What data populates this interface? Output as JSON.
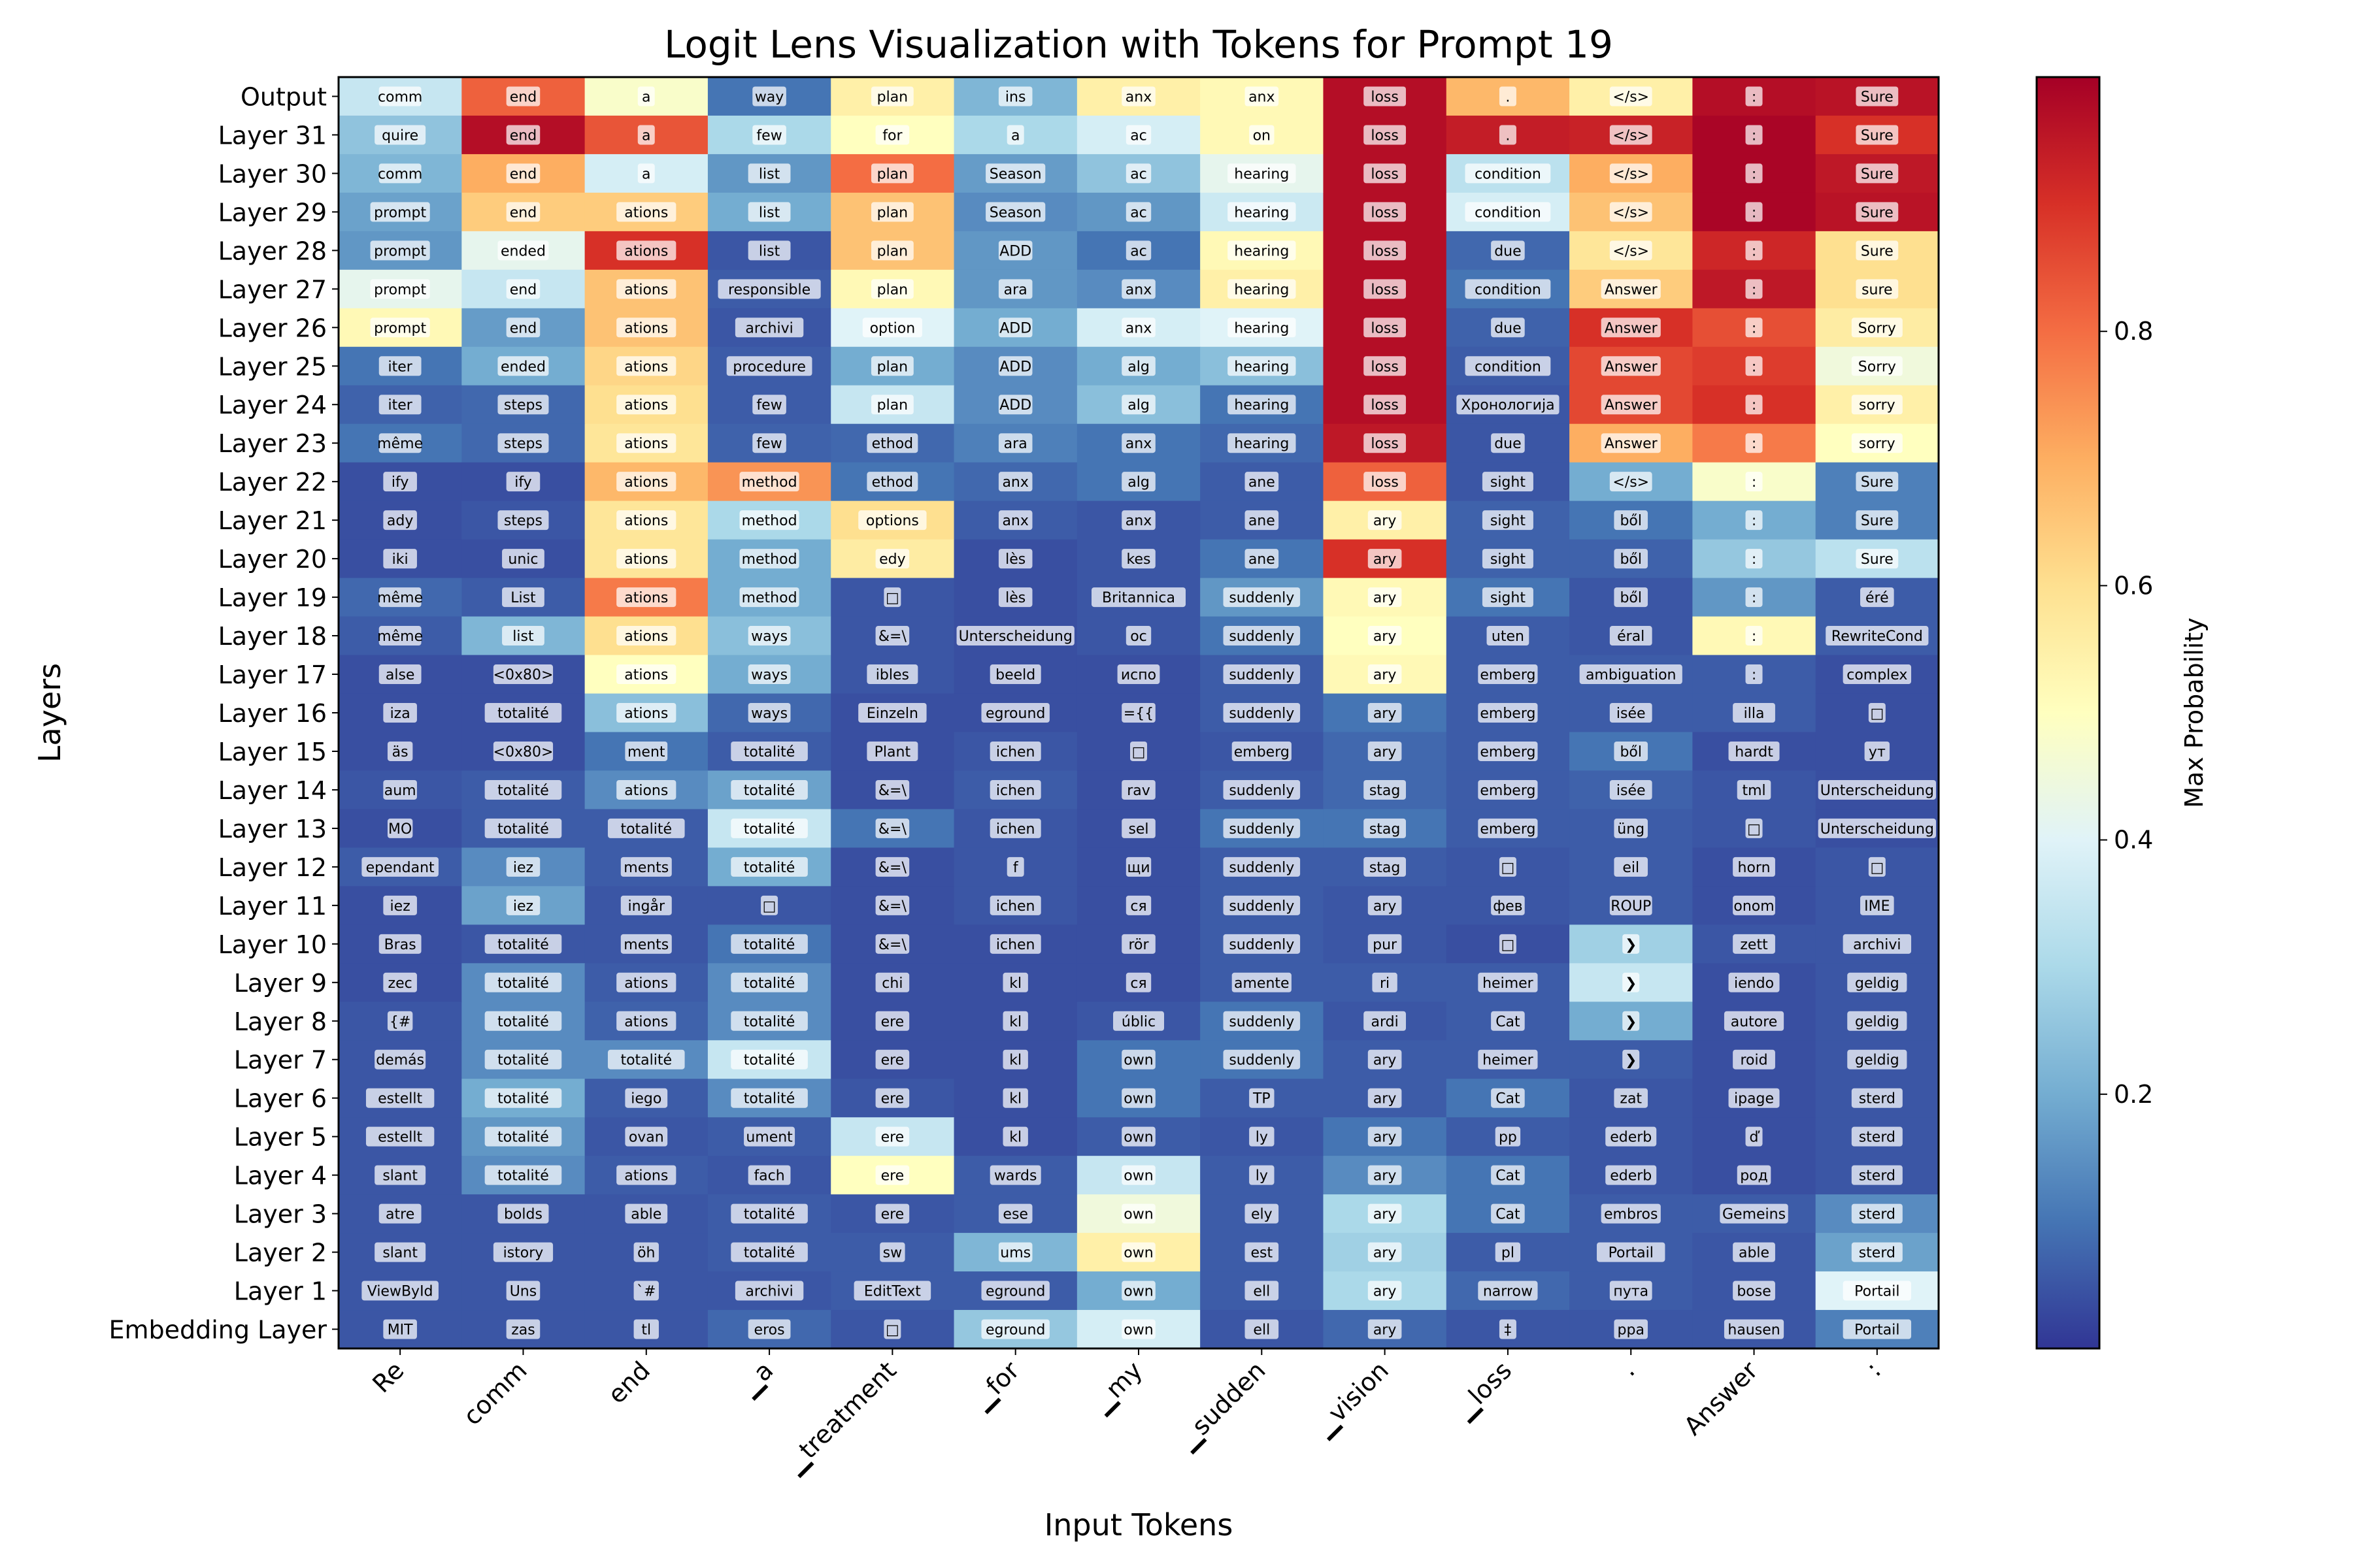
{
  "chart_data": {
    "type": "heatmap",
    "title": "Logit Lens Visualization with Tokens for Prompt 19",
    "xlabel": "Input Tokens",
    "ylabel": "Layers",
    "colorbar_label": "Max Probability",
    "colormap": "RdYlBu_r",
    "value_range": [
      0.0,
      1.0
    ],
    "colorbar_ticks": [
      0.2,
      0.4,
      0.6,
      0.8
    ],
    "x_tokens": [
      "Re",
      "comm",
      "end",
      "▁a",
      "▁treatment",
      "▁for",
      "▁my",
      "▁sudden",
      "▁vision",
      "▁loss",
      ".",
      "Answer",
      ":"
    ],
    "y_layers": [
      "Output",
      "Layer 31",
      "Layer 30",
      "Layer 29",
      "Layer 28",
      "Layer 27",
      "Layer 26",
      "Layer 25",
      "Layer 24",
      "Layer 23",
      "Layer 22",
      "Layer 21",
      "Layer 20",
      "Layer 19",
      "Layer 18",
      "Layer 17",
      "Layer 16",
      "Layer 15",
      "Layer 14",
      "Layer 13",
      "Layer 12",
      "Layer 11",
      "Layer 10",
      "Layer 9",
      "Layer 8",
      "Layer 7",
      "Layer 6",
      "Layer 5",
      "Layer 4",
      "Layer 3",
      "Layer 2",
      "Layer 1",
      "Embedding Layer"
    ],
    "cells": [
      {
        "tokens": [
          "comm",
          "end",
          "a",
          "way",
          "plan",
          "ins",
          "anx",
          "anx",
          "loss",
          ".",
          "</s>",
          ":",
          "Sure"
        ],
        "values": [
          0.35,
          0.82,
          0.48,
          0.1,
          0.55,
          0.22,
          0.55,
          0.52,
          0.97,
          0.68,
          0.55,
          0.97,
          0.96
        ]
      },
      {
        "tokens": [
          "quire",
          "end",
          "a",
          "few",
          "for",
          "a",
          "ac",
          "on",
          "loss",
          ".",
          "</s>",
          ":",
          "Sure"
        ],
        "values": [
          0.25,
          0.97,
          0.84,
          0.3,
          0.5,
          0.3,
          0.38,
          0.52,
          0.97,
          0.94,
          0.93,
          0.99,
          0.9
        ]
      },
      {
        "tokens": [
          "comm",
          "end",
          "a",
          "list",
          "plan",
          "Season",
          "ac",
          "hearing",
          "loss",
          "condition",
          "</s>",
          ":",
          "Sure"
        ],
        "values": [
          0.22,
          0.7,
          0.38,
          0.16,
          0.8,
          0.17,
          0.25,
          0.42,
          0.97,
          0.33,
          0.7,
          0.99,
          0.95
        ]
      },
      {
        "tokens": [
          "prompt",
          "end",
          "ations",
          "list",
          "plan",
          "Season",
          "ac",
          "hearing",
          "loss",
          "condition",
          "</s>",
          ":",
          "Sure"
        ],
        "values": [
          0.18,
          0.64,
          0.64,
          0.2,
          0.66,
          0.14,
          0.16,
          0.36,
          0.97,
          0.38,
          0.66,
          0.99,
          0.96
        ]
      },
      {
        "tokens": [
          "prompt",
          "ended",
          "ations",
          "list",
          "plan",
          "ADD",
          "ac",
          "hearing",
          "loss",
          "due",
          "</s>",
          ":",
          "Sure"
        ],
        "values": [
          0.16,
          0.42,
          0.9,
          0.05,
          0.66,
          0.16,
          0.1,
          0.52,
          0.97,
          0.08,
          0.58,
          0.92,
          0.6
        ]
      },
      {
        "tokens": [
          "prompt",
          "end",
          "ations",
          "responsible",
          "plan",
          "ara",
          "anx",
          "hearing",
          "loss",
          "condition",
          "Answer",
          ":",
          "sure"
        ],
        "values": [
          0.42,
          0.35,
          0.66,
          0.06,
          0.52,
          0.16,
          0.14,
          0.55,
          0.97,
          0.1,
          0.64,
          0.95,
          0.6
        ]
      },
      {
        "tokens": [
          "prompt",
          "end",
          "ations",
          "archivi",
          "option",
          "ADD",
          "anx",
          "hearing",
          "loss",
          "due",
          "Answer",
          ":",
          "Sorry"
        ],
        "values": [
          0.52,
          0.17,
          0.66,
          0.05,
          0.4,
          0.2,
          0.38,
          0.4,
          0.97,
          0.07,
          0.9,
          0.85,
          0.56
        ]
      },
      {
        "tokens": [
          "iter",
          "ended",
          "ations",
          "procedure",
          "plan",
          "ADD",
          "alg",
          "hearing",
          "loss",
          "condition",
          "Answer",
          ":",
          "Sorry"
        ],
        "values": [
          0.1,
          0.2,
          0.62,
          0.06,
          0.2,
          0.14,
          0.2,
          0.24,
          0.97,
          0.06,
          0.86,
          0.88,
          0.45
        ]
      },
      {
        "tokens": [
          "iter",
          "steps",
          "ations",
          "few",
          "plan",
          "ADD",
          "alg",
          "hearing",
          "loss",
          "Хронологија",
          "Answer",
          ":",
          "sorry"
        ],
        "values": [
          0.07,
          0.08,
          0.6,
          0.06,
          0.35,
          0.14,
          0.24,
          0.1,
          0.97,
          0.05,
          0.86,
          0.9,
          0.55
        ]
      },
      {
        "tokens": [
          "même",
          "steps",
          "ations",
          "few",
          "ethod",
          "ara",
          "anx",
          "hearing",
          "loss",
          "due",
          "Answer",
          ":",
          "sorry"
        ],
        "values": [
          0.1,
          0.08,
          0.58,
          0.07,
          0.08,
          0.12,
          0.1,
          0.08,
          0.95,
          0.05,
          0.7,
          0.78,
          0.5
        ]
      },
      {
        "tokens": [
          "ify",
          "ify",
          "ations",
          "method",
          "ethod",
          "anx",
          "alg",
          "ane",
          "loss",
          "sight",
          "</s>",
          ":",
          "Sure"
        ],
        "values": [
          0.04,
          0.04,
          0.68,
          0.74,
          0.1,
          0.08,
          0.1,
          0.06,
          0.82,
          0.05,
          0.2,
          0.48,
          0.12
        ]
      },
      {
        "tokens": [
          "ady",
          "steps",
          "ations",
          "method",
          "options",
          "anx",
          "anx",
          "ane",
          "ary",
          "sight",
          "ből",
          ":",
          "Sure"
        ],
        "values": [
          0.04,
          0.05,
          0.58,
          0.3,
          0.6,
          0.06,
          0.05,
          0.06,
          0.55,
          0.07,
          0.1,
          0.2,
          0.12
        ]
      },
      {
        "tokens": [
          "iki",
          "unic",
          "ations",
          "method",
          "edy",
          "lès",
          "kes",
          "ane",
          "ary",
          "sight",
          "ből",
          ":",
          "Sure"
        ],
        "values": [
          0.04,
          0.04,
          0.58,
          0.2,
          0.56,
          0.04,
          0.05,
          0.1,
          0.9,
          0.07,
          0.07,
          0.26,
          0.33
        ]
      },
      {
        "tokens": [
          "même",
          "List",
          "ations",
          "method",
          "□",
          "lès",
          "Britannica",
          "suddenly",
          "ary",
          "sight",
          "ből",
          ":",
          "éré"
        ],
        "values": [
          0.08,
          0.06,
          0.78,
          0.2,
          0.05,
          0.04,
          0.05,
          0.16,
          0.52,
          0.1,
          0.05,
          0.16,
          0.06
        ]
      },
      {
        "tokens": [
          "même",
          "list",
          "ations",
          "ways",
          "&=\\",
          "Unterscheidung",
          "oc",
          "suddenly",
          "ary",
          "uten",
          "éral",
          ":",
          "RewriteCond"
        ],
        "values": [
          0.06,
          0.22,
          0.6,
          0.24,
          0.05,
          0.04,
          0.05,
          0.1,
          0.5,
          0.06,
          0.05,
          0.52,
          0.06
        ]
      },
      {
        "tokens": [
          "alse",
          "<0x80>",
          "ations",
          "ways",
          "ibles",
          "beeld",
          "испо",
          "suddenly",
          "ary",
          "emberg",
          "ambiguation",
          ":",
          "complex"
        ],
        "values": [
          0.04,
          0.04,
          0.5,
          0.2,
          0.05,
          0.04,
          0.04,
          0.06,
          0.52,
          0.06,
          0.06,
          0.06,
          0.04
        ]
      },
      {
        "tokens": [
          "iza",
          "totalité",
          "ations",
          "ways",
          "Einzeln",
          "eground",
          "={{",
          "suddenly",
          "ary",
          "emberg",
          "isée",
          "illa",
          "□"
        ],
        "values": [
          0.04,
          0.04,
          0.24,
          0.08,
          0.04,
          0.04,
          0.04,
          0.06,
          0.1,
          0.06,
          0.06,
          0.06,
          0.04
        ]
      },
      {
        "tokens": [
          "äs",
          "<0x80>",
          "ment",
          "totalité",
          "Plant",
          "ichen",
          "□",
          "emberg",
          "ary",
          "emberg",
          "ből",
          "hardt",
          "ут"
        ],
        "values": [
          0.04,
          0.04,
          0.1,
          0.06,
          0.04,
          0.05,
          0.04,
          0.05,
          0.08,
          0.06,
          0.1,
          0.04,
          0.04
        ]
      },
      {
        "tokens": [
          "aum",
          "totalité",
          "ations",
          "totalité",
          "&=\\",
          "ichen",
          "rav",
          "suddenly",
          "stag",
          "emberg",
          "isée",
          "tml",
          "Unterscheidung"
        ],
        "values": [
          0.05,
          0.06,
          0.14,
          0.18,
          0.04,
          0.06,
          0.04,
          0.06,
          0.08,
          0.06,
          0.07,
          0.05,
          0.04
        ]
      },
      {
        "tokens": [
          "MO",
          "totalité",
          "totalité",
          "totalité",
          "&=\\",
          "ichen",
          "sel",
          "suddenly",
          "stag",
          "emberg",
          "üng",
          "□",
          "Unterscheidung"
        ],
        "values": [
          0.04,
          0.06,
          0.06,
          0.35,
          0.1,
          0.05,
          0.04,
          0.1,
          0.1,
          0.06,
          0.06,
          0.05,
          0.04
        ]
      },
      {
        "tokens": [
          "ependant",
          "iez",
          "ments",
          "totalité",
          "&=\\",
          "f",
          "щи",
          "suddenly",
          "stag",
          "□",
          "eil",
          "horn",
          "□"
        ],
        "values": [
          0.06,
          0.14,
          0.06,
          0.2,
          0.04,
          0.05,
          0.04,
          0.06,
          0.06,
          0.05,
          0.06,
          0.04,
          0.05
        ]
      },
      {
        "tokens": [
          "iez",
          "iez",
          "ingår",
          "□",
          "&=\\",
          "ichen",
          "ся",
          "suddenly",
          "ary",
          "фев",
          "ROUP",
          "onom",
          "IME"
        ],
        "values": [
          0.04,
          0.18,
          0.05,
          0.05,
          0.04,
          0.05,
          0.04,
          0.06,
          0.05,
          0.05,
          0.06,
          0.04,
          0.05
        ]
      },
      {
        "tokens": [
          "Bras",
          "totalité",
          "ments",
          "totalité",
          "&=\\",
          "ichen",
          "rör",
          "suddenly",
          "pur",
          "□",
          "❯",
          "zett",
          "archivi"
        ],
        "values": [
          0.04,
          0.05,
          0.05,
          0.1,
          0.04,
          0.04,
          0.04,
          0.06,
          0.05,
          0.04,
          0.28,
          0.05,
          0.05
        ]
      },
      {
        "tokens": [
          "zec",
          "totalité",
          "ations",
          "totalité",
          "chi",
          "kl",
          "ся",
          "amente",
          "ri",
          "heimer",
          "❯",
          "iendo",
          "geldig"
        ],
        "values": [
          0.04,
          0.14,
          0.06,
          0.14,
          0.04,
          0.04,
          0.04,
          0.06,
          0.06,
          0.06,
          0.35,
          0.04,
          0.05
        ]
      },
      {
        "tokens": [
          "{#",
          "totalité",
          "ations",
          "totalité",
          "ere",
          "kl",
          "úblic",
          "suddenly",
          "ardi",
          "Cat",
          "❯",
          "autore",
          "geldig"
        ],
        "values": [
          0.05,
          0.14,
          0.07,
          0.14,
          0.04,
          0.04,
          0.05,
          0.1,
          0.05,
          0.06,
          0.2,
          0.04,
          0.05
        ]
      },
      {
        "tokens": [
          "demás",
          "totalité",
          "totalité",
          "totalité",
          "ere",
          "kl",
          "own",
          "suddenly",
          "ary",
          "heimer",
          "❯",
          "roid",
          "geldig"
        ],
        "values": [
          0.05,
          0.14,
          0.14,
          0.35,
          0.04,
          0.04,
          0.1,
          0.1,
          0.06,
          0.06,
          0.06,
          0.04,
          0.05
        ]
      },
      {
        "tokens": [
          "estellt",
          "totalité",
          "iego",
          "totalité",
          "ere",
          "kl",
          "own",
          "TP",
          "ary",
          "Cat",
          "zat",
          "ipage",
          "sterd"
        ],
        "values": [
          0.05,
          0.2,
          0.06,
          0.14,
          0.05,
          0.04,
          0.1,
          0.06,
          0.06,
          0.1,
          0.05,
          0.04,
          0.05
        ]
      },
      {
        "tokens": [
          "estellt",
          "totalité",
          "ovan",
          "ument",
          "ere",
          "kl",
          "own",
          "ly",
          "ary",
          "pp",
          "ederb",
          "ď",
          "sterd"
        ],
        "values": [
          0.05,
          0.16,
          0.05,
          0.06,
          0.35,
          0.04,
          0.06,
          0.05,
          0.1,
          0.06,
          0.05,
          0.04,
          0.05
        ]
      },
      {
        "tokens": [
          "slant",
          "totalité",
          "ations",
          "fach",
          "ere",
          "wards",
          "own",
          "ly",
          "ary",
          "Cat",
          "ederb",
          "род",
          "sterd"
        ],
        "values": [
          0.05,
          0.14,
          0.06,
          0.05,
          0.5,
          0.06,
          0.35,
          0.06,
          0.14,
          0.1,
          0.05,
          0.04,
          0.05
        ]
      },
      {
        "tokens": [
          "atre",
          "bolds",
          "able",
          "totalité",
          "ere",
          "ese",
          "own",
          "ely",
          "ary",
          "Cat",
          "embros",
          "Gemeins",
          "sterd"
        ],
        "values": [
          0.05,
          0.05,
          0.05,
          0.06,
          0.05,
          0.06,
          0.45,
          0.06,
          0.3,
          0.1,
          0.06,
          0.06,
          0.14
        ]
      },
      {
        "tokens": [
          "slant",
          "istory",
          "öh",
          "totalité",
          "sw",
          "ums",
          "own",
          "est",
          "ary",
          "pl",
          "Portail",
          "able",
          "sterd"
        ],
        "values": [
          0.05,
          0.05,
          0.05,
          0.06,
          0.06,
          0.22,
          0.55,
          0.06,
          0.28,
          0.06,
          0.06,
          0.05,
          0.18
        ]
      },
      {
        "tokens": [
          "ViewById",
          "Uns",
          "`#",
          "archivi",
          "EditText",
          "eground",
          "own",
          "ell",
          "ary",
          "narrow",
          "пута",
          "bose",
          "Portail"
        ],
        "values": [
          0.05,
          0.05,
          0.05,
          0.05,
          0.06,
          0.06,
          0.2,
          0.06,
          0.3,
          0.08,
          0.06,
          0.05,
          0.4
        ]
      },
      {
        "tokens": [
          "MIT",
          "zas",
          "tl",
          "eros",
          "□",
          "eground",
          "own",
          "ell",
          "ary",
          "‡",
          "ppa",
          "hausen",
          "Portail"
        ],
        "values": [
          0.05,
          0.05,
          0.05,
          0.08,
          0.05,
          0.26,
          0.38,
          0.05,
          0.08,
          0.05,
          0.05,
          0.05,
          0.12
        ]
      }
    ]
  }
}
